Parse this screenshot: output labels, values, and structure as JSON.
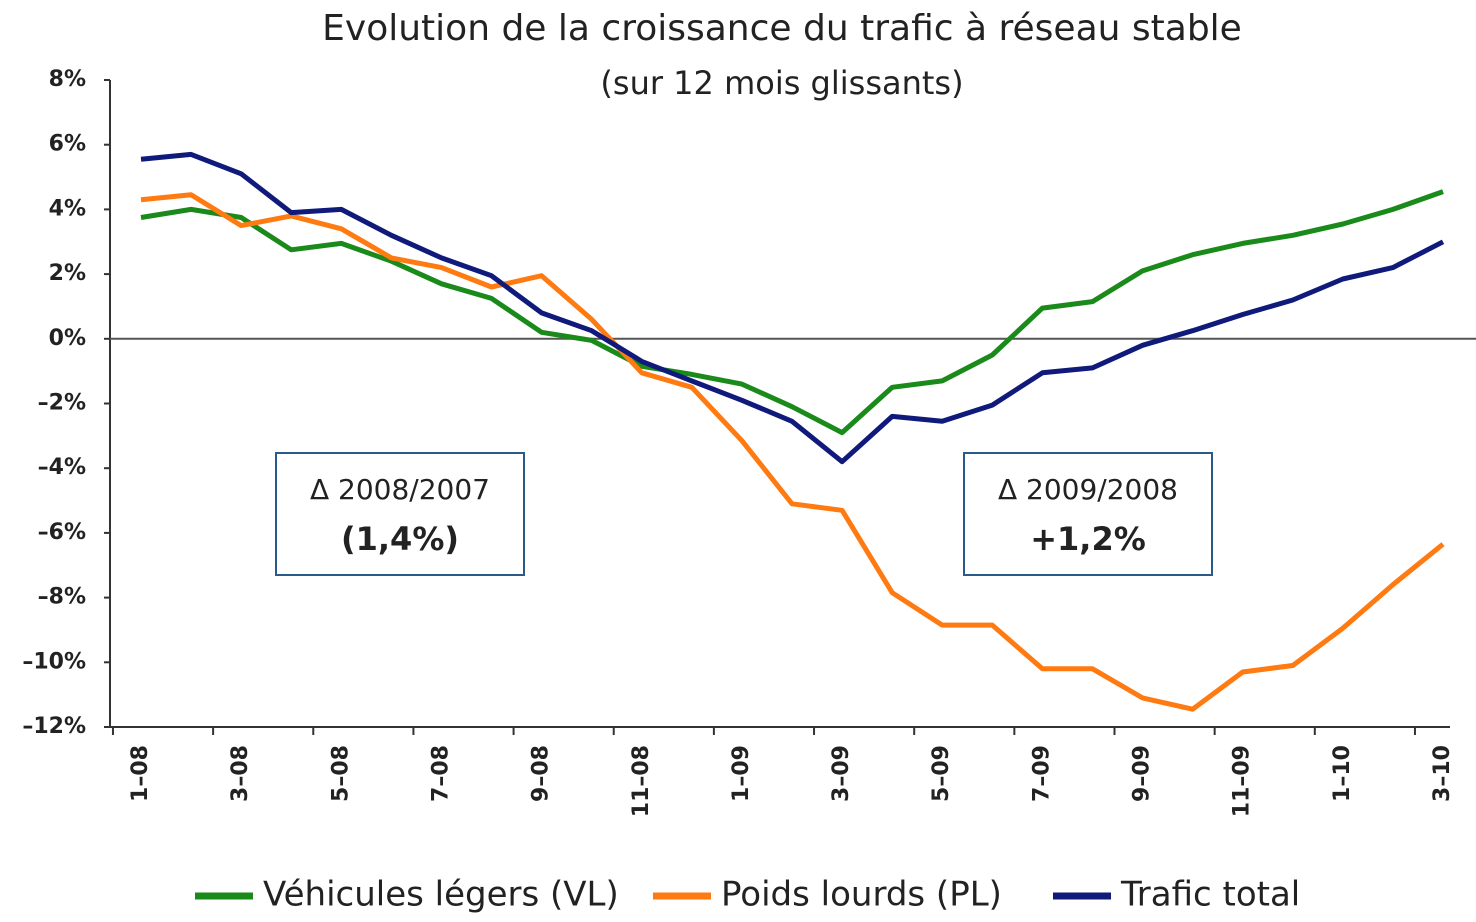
{
  "chart_data": {
    "type": "line",
    "title": "Evolution de la croissance du trafic à réseau stable",
    "subtitle": "(sur 12 mois glissants)",
    "categories": [
      "1–08",
      null,
      "3–08",
      null,
      "5–08",
      null,
      "7–08",
      null,
      "9–08",
      null,
      "11–08",
      null,
      "1–09",
      null,
      "3–09",
      null,
      "5–09",
      null,
      "7–09",
      null,
      "9–09",
      null,
      "11–09",
      null,
      "1–10",
      null,
      "3–10"
    ],
    "series": [
      {
        "name": "Véhicules légers (VL)",
        "color": "#1a8a1a",
        "values": [
          3.75,
          4.0,
          3.75,
          2.75,
          2.95,
          2.4,
          1.7,
          1.25,
          0.2,
          -0.05,
          -0.85,
          -1.1,
          -1.4,
          -2.1,
          -2.9,
          -1.5,
          -1.3,
          -0.5,
          0.95,
          1.15,
          2.1,
          2.6,
          2.95,
          3.2,
          3.55,
          4.0,
          4.55
        ]
      },
      {
        "name": "Poids lourds (PL)",
        "color": "#ff7a10",
        "values": [
          4.3,
          4.45,
          3.5,
          3.8,
          3.4,
          2.5,
          2.2,
          1.6,
          1.95,
          0.6,
          -1.05,
          -1.5,
          -3.15,
          -5.1,
          -5.3,
          -7.85,
          -8.85,
          -8.85,
          -10.2,
          -10.2,
          -11.1,
          -11.45,
          -10.3,
          -10.1,
          -8.95,
          -7.6,
          -6.35
        ]
      },
      {
        "name": "Trafic total",
        "color": "#101a7a",
        "values": [
          5.55,
          5.7,
          5.1,
          3.9,
          4.0,
          3.2,
          2.5,
          1.95,
          0.8,
          0.25,
          -0.7,
          -1.3,
          -1.9,
          -2.55,
          -3.8,
          -2.4,
          -2.55,
          -2.05,
          -1.05,
          -0.9,
          -0.2,
          0.25,
          0.75,
          1.2,
          1.85,
          2.2,
          3.0
        ]
      }
    ],
    "ylim": [
      -12,
      8
    ],
    "yticks": [
      {
        "value": 8,
        "label": "8%"
      },
      {
        "value": 6,
        "label": "6%"
      },
      {
        "value": 4,
        "label": "4%"
      },
      {
        "value": 2,
        "label": "2%"
      },
      {
        "value": 0,
        "label": "0%"
      },
      {
        "value": -2,
        "label": "–2%"
      },
      {
        "value": -4,
        "label": "–4%"
      },
      {
        "value": -6,
        "label": "–6%"
      },
      {
        "value": -8,
        "label": "–8%"
      },
      {
        "value": -10,
        "label": "–10%"
      },
      {
        "value": -12,
        "label": "–12%"
      }
    ],
    "annotations": [
      {
        "label": "Δ 2008/2007",
        "value": "(1,4%)",
        "color": "#c83c00"
      },
      {
        "label": "Δ 2009/2008",
        "value": "+1,2%",
        "color": "#000000"
      }
    ],
    "legend": "bottom"
  }
}
